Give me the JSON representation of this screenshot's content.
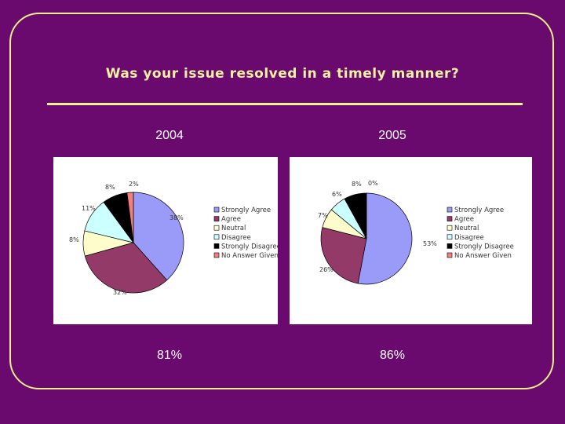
{
  "title": "Was your issue resolved in a timely manner?",
  "accent_color": "#f6f096",
  "background_color": "#6a0a6e",
  "chart_data": [
    {
      "type": "pie",
      "year_label": "2004",
      "summary_value": "81%",
      "legend_placement": "right",
      "legend": [
        "Strongly Agree",
        "Agree",
        "Neutral",
        "Disagree",
        "Strongly Disagree",
        "No Answer Given"
      ],
      "colors": [
        "#9a9af8",
        "#943a68",
        "#fffccc",
        "#ccffff",
        "#000000",
        "#f08080"
      ],
      "values": [
        38,
        32,
        8,
        11,
        8,
        2
      ],
      "labels": [
        "38%",
        "32%",
        "8%",
        "11%",
        "8%",
        "2%"
      ]
    },
    {
      "type": "pie",
      "year_label": "2005",
      "summary_value": "86%",
      "legend_placement": "right",
      "legend": [
        "Strongly Agree",
        "Agree",
        "Neutral",
        "Disagree",
        "Strongly Disagree",
        "No Answer Given"
      ],
      "colors": [
        "#9a9af8",
        "#943a68",
        "#fffccc",
        "#ccffff",
        "#000000",
        "#f08080"
      ],
      "values": [
        53,
        26,
        7,
        6,
        8,
        0
      ],
      "labels": [
        "53%",
        "26%",
        "7%",
        "6%",
        "8%",
        "0%"
      ]
    }
  ]
}
